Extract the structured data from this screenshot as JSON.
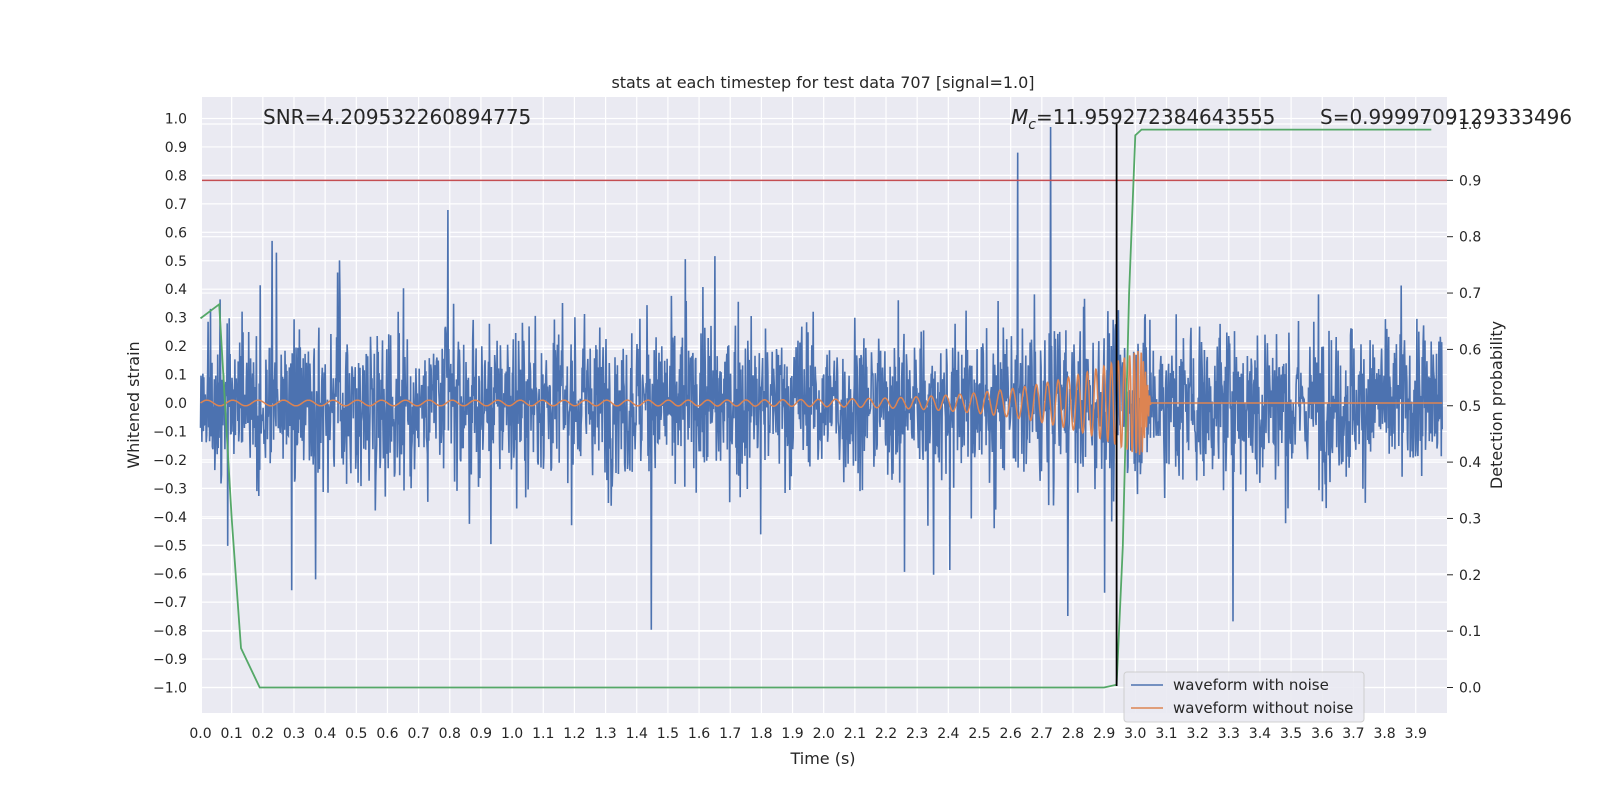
{
  "chart_data": {
    "type": "line",
    "title": "stats at each timestep for test data 707 [signal=1.0]",
    "xlabel": "Time (s)",
    "ylabel_left": "Whitened strain",
    "ylabel_right": "Detection probability",
    "xlim": [
      0.0,
      4.0
    ],
    "ylim_left": [
      -1.1,
      1.1
    ],
    "ylim_right": [
      -0.05,
      1.0
    ],
    "x_ticks": [
      "0.0",
      "0.1",
      "0.2",
      "0.3",
      "0.4",
      "0.5",
      "0.6",
      "0.7",
      "0.8",
      "0.9",
      "1.0",
      "1.1",
      "1.2",
      "1.3",
      "1.4",
      "1.5",
      "1.6",
      "1.7",
      "1.8",
      "1.9",
      "2.0",
      "2.1",
      "2.2",
      "2.3",
      "2.4",
      "2.5",
      "2.6",
      "2.7",
      "2.8",
      "2.9",
      "3.0",
      "3.1",
      "3.2",
      "3.3",
      "3.4",
      "3.5",
      "3.6",
      "3.7",
      "3.8",
      "3.9"
    ],
    "y_ticks_left": [
      "1.0",
      "0.9",
      "0.8",
      "0.7",
      "0.6",
      "0.5",
      "0.4",
      "0.3",
      "0.2",
      "0.1",
      "0.0",
      "−0.1",
      "−0.2",
      "−0.3",
      "−0.4",
      "−0.5",
      "−0.6",
      "−0.7",
      "−0.8",
      "−0.9",
      "−1.0"
    ],
    "y_ticks_right": [
      "1.0",
      "0.9",
      "0.8",
      "0.7",
      "0.6",
      "0.5",
      "0.4",
      "0.3",
      "0.2",
      "0.1",
      "0.0"
    ],
    "annotations": {
      "snr": "SNR=4.209532260894775",
      "mc_sym": "M",
      "mc_sub": "c",
      "mc_val": "=11.959272384643555",
      "s": "S=0.9999709129333496"
    },
    "threshold_right": 0.9,
    "event_time": 2.94,
    "series": [
      {
        "name": "waveform with noise",
        "color": "#4c72b0",
        "envelope_typical": 0.5,
        "envelope_max": 0.97
      },
      {
        "name": "waveform without noise",
        "color": "#dd8452",
        "chirp_start_amp": 0.01,
        "chirp_peak_amp": 0.19,
        "chirp_peak_time": 3.02
      },
      {
        "name": "detection probability",
        "color": "#55a868",
        "x": [
          0.0,
          0.06,
          0.1,
          0.13,
          0.19,
          2.9,
          2.94,
          2.96,
          2.98,
          3.0,
          3.01,
          3.02,
          3.95
        ],
        "values": [
          0.655,
          0.68,
          0.3,
          0.07,
          0.0,
          0.0,
          0.005,
          0.25,
          0.7,
          0.98,
          0.985,
          0.99,
          0.99
        ]
      }
    ],
    "legend": [
      "waveform with noise",
      "waveform without noise"
    ],
    "colors": {
      "threshold": "#c44e52",
      "event": "#000000",
      "background": "#eaeaf2",
      "grid": "#ffffff"
    },
    "grid": true,
    "legend_position": "lower-right"
  }
}
